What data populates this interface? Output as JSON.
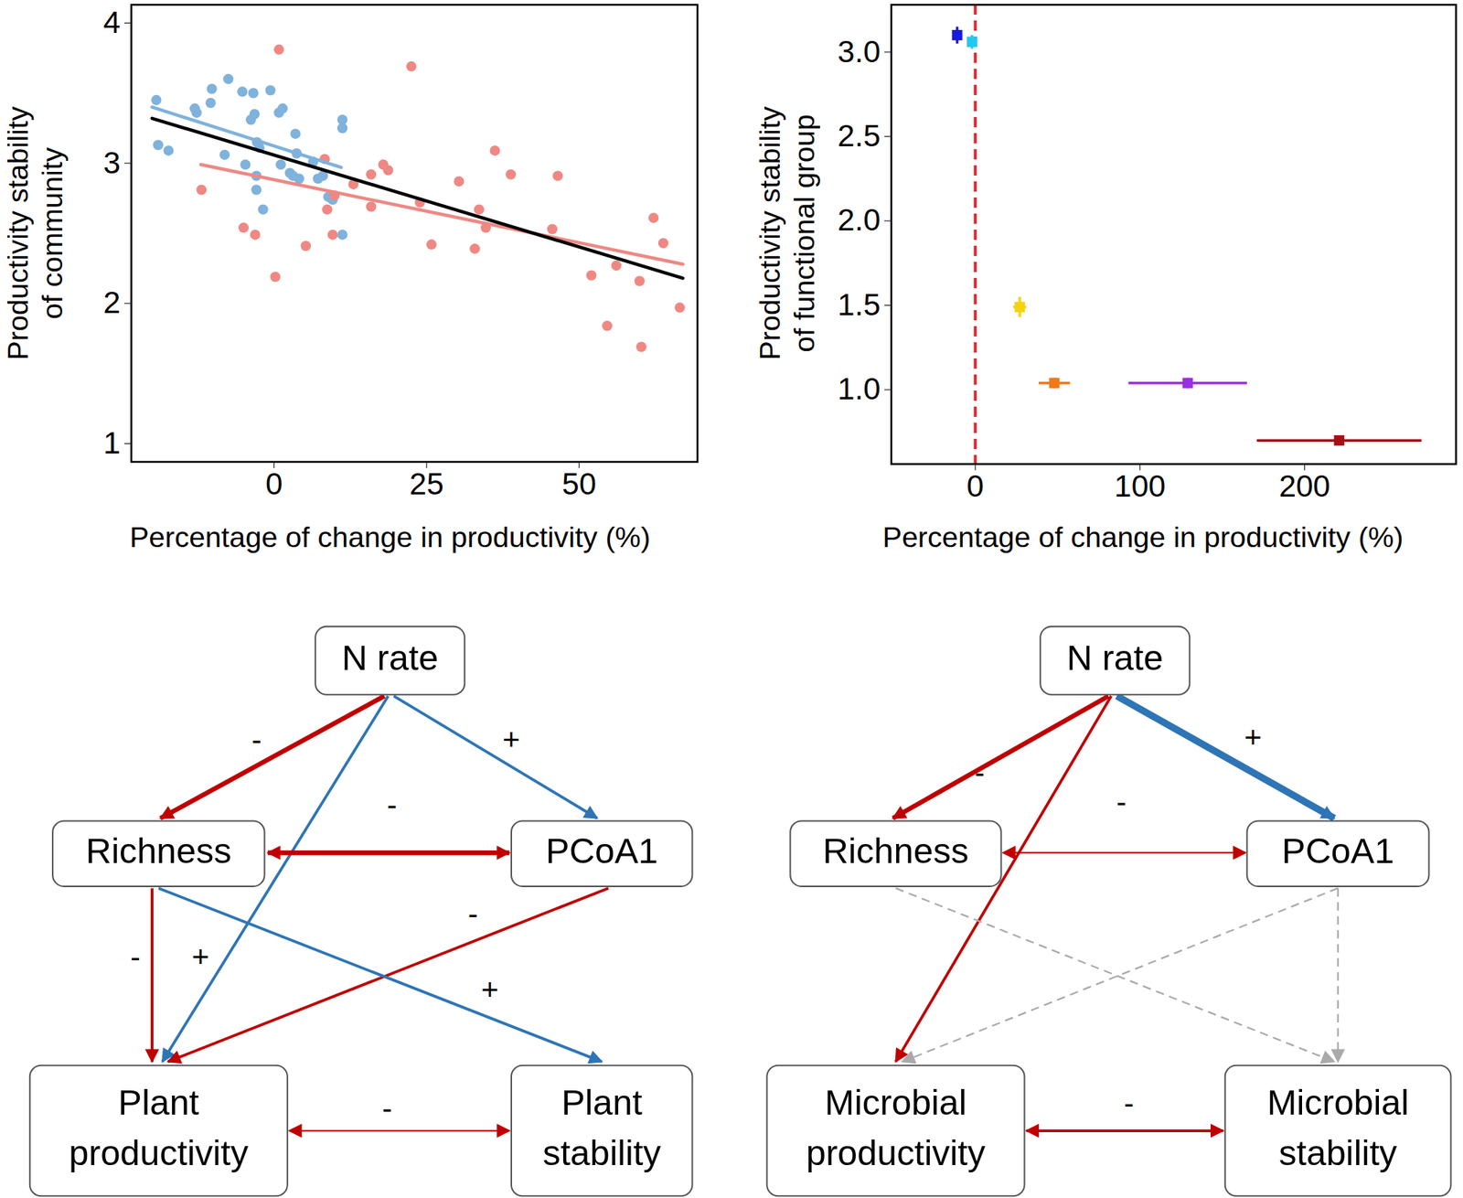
{
  "chart_data": [
    {
      "type": "scatter",
      "xlabel": "Percentage of change in productivity (%)",
      "ylabel": "Productivity stability\nof community",
      "xlim": [
        -23.4,
        69.4
      ],
      "ylim": [
        0.87,
        4.13
      ],
      "xticks": [
        0,
        25,
        50
      ],
      "yticks": [
        1,
        2,
        3,
        4
      ],
      "series": [
        {
          "type": "scatter",
          "color": "#7fb2dc",
          "x": [
            -19.3,
            -19.0,
            -17.3,
            -13.0,
            -12.7,
            -10.2,
            -7.5,
            -10.4,
            -8.1,
            -5.2,
            -3.4,
            -3.8,
            -3.2,
            -4.7,
            -2.8,
            -2.4,
            -2.9,
            -2.9,
            -1.8,
            -0.6,
            0.8,
            1.4,
            1.1,
            2.6,
            3.5,
            3.1,
            4.1,
            3.7,
            7.2,
            8.0,
            6.4,
            8.9,
            9.6,
            11.2,
            11.2,
            11.2
          ],
          "y": [
            3.45,
            3.13,
            3.09,
            3.39,
            3.36,
            3.53,
            3.6,
            3.43,
            3.06,
            3.51,
            3.5,
            3.31,
            3.35,
            2.99,
            3.15,
            3.11,
            2.91,
            2.81,
            2.67,
            3.52,
            3.36,
            3.39,
            2.99,
            2.93,
            3.21,
            2.91,
            2.89,
            3.07,
            2.89,
            2.91,
            3.01,
            2.76,
            2.74,
            3.31,
            3.25,
            2.49
          ]
        },
        {
          "type": "scatter",
          "color": "#ef8883",
          "x": [
            -11.9,
            -5.0,
            -3.1,
            0.2,
            0.8,
            5.2,
            8.3,
            8.7,
            9.6,
            9.9,
            13.0,
            15.9,
            15.9,
            17.9,
            18.7,
            22.5,
            23.9,
            25.8,
            30.3,
            32.9,
            33.6,
            34.7,
            36.2,
            38.8,
            45.6,
            46.5,
            52.0,
            54.6,
            56.1,
            59.9,
            60.2,
            62.2,
            63.8,
            66.5
          ],
          "y": [
            2.81,
            2.54,
            2.49,
            2.19,
            3.81,
            2.41,
            3.03,
            2.67,
            2.49,
            2.77,
            2.85,
            2.92,
            2.69,
            2.99,
            2.95,
            3.69,
            2.72,
            2.42,
            2.87,
            2.39,
            2.67,
            2.54,
            3.09,
            2.92,
            2.53,
            2.91,
            2.2,
            1.84,
            2.27,
            2.16,
            1.69,
            2.61,
            2.43,
            1.97
          ]
        },
        {
          "type": "line",
          "color": "#7fb2dc",
          "x": [
            -20,
            11
          ],
          "y": [
            3.4,
            2.97
          ]
        },
        {
          "type": "line",
          "color": "#ef8883",
          "x": [
            -12,
            67
          ],
          "y": [
            2.99,
            2.28
          ]
        },
        {
          "type": "line",
          "color": "#000000",
          "x": [
            -20,
            67
          ],
          "y": [
            3.32,
            2.18
          ]
        }
      ]
    },
    {
      "type": "scatter",
      "xlabel": "Percentage of change in productivity (%)",
      "ylabel": "Productivity stability\nof functional group",
      "xlim": [
        -51,
        292
      ],
      "ylim": [
        0.56,
        3.28
      ],
      "xticks": [
        0,
        100,
        200
      ],
      "yticks": [
        {
          "value": 1,
          "label": "1.0"
        },
        {
          "value": 1.5,
          "label": "1.5"
        },
        {
          "value": 2,
          "label": "2.0"
        },
        {
          "value": 2.5,
          "label": "2.5"
        },
        {
          "value": 3,
          "label": "3.0"
        }
      ],
      "marker": "square",
      "series": [
        {
          "type": "rule",
          "color": "#e8262b",
          "line_style": "dashed",
          "x": [
            0
          ]
        }
      ],
      "points": [
        {
          "x": -11,
          "y": 3.1,
          "x_error": 2,
          "y_error": 0.05,
          "color": "#1a1adf"
        },
        {
          "x": -2,
          "y": 3.06,
          "x_error": 1.5,
          "y_error": 0.04,
          "color": "#22c8f0"
        },
        {
          "x": 27,
          "y": 1.49,
          "x_error": 4,
          "y_error": 0.06,
          "color": "#f5d20f"
        },
        {
          "x": 48,
          "y": 1.04,
          "x_error": 9.5,
          "y_error": 0.03,
          "color": "#f07818"
        },
        {
          "x": 129,
          "y": 1.04,
          "x_error": 36,
          "y_error": 0.03,
          "color": "#9a30e0"
        },
        {
          "x": 221,
          "y": 0.7,
          "x_error": 50,
          "y_error": 0.01,
          "color": "#a50f15"
        }
      ]
    }
  ],
  "diagrams": [
    {
      "nodes": [
        {
          "label": "N rate"
        },
        {
          "label": "Richness"
        },
        {
          "label": "PCoA1"
        },
        {
          "label": "Plant\nproductivity"
        },
        {
          "label": "Plant\nstability"
        }
      ],
      "edges": [
        {
          "from": 0,
          "to": 1,
          "sign": "-",
          "color": "#c00000",
          "weight": "thick",
          "line_style": "solid"
        },
        {
          "from": 0,
          "to": 3,
          "sign": "+",
          "color": "#2e75b6",
          "weight": "normal",
          "line_style": "solid"
        },
        {
          "from": 0,
          "to": 2,
          "sign": "+",
          "color": "#2e75b6",
          "weight": "normal",
          "line_style": "solid"
        },
        {
          "from": 1,
          "to": 2,
          "sign": "-",
          "color": "#c00000",
          "weight": "thick",
          "line_style": "solid",
          "bidirectional": true
        },
        {
          "from": 1,
          "to": 3,
          "sign": "-",
          "color": "#c00000",
          "weight": "normal",
          "line_style": "solid"
        },
        {
          "from": 2,
          "to": 3,
          "sign": "-",
          "color": "#c00000",
          "weight": "normal",
          "line_style": "solid"
        },
        {
          "from": 1,
          "to": 4,
          "sign": "+",
          "color": "#2e75b6",
          "weight": "normal",
          "line_style": "solid"
        },
        {
          "from": 3,
          "to": 4,
          "sign": "-",
          "color": "#c00000",
          "weight": "thin",
          "line_style": "solid",
          "bidirectional": true
        }
      ]
    },
    {
      "nodes": [
        {
          "label": "N rate"
        },
        {
          "label": "Richness"
        },
        {
          "label": "PCoA1"
        },
        {
          "label": "Microbial\nproductivity"
        },
        {
          "label": "Microbial\nstability"
        }
      ],
      "edges": [
        {
          "from": 0,
          "to": 1,
          "sign": "-",
          "color": "#c00000",
          "weight": "thick",
          "line_style": "solid"
        },
        {
          "from": 0,
          "to": 2,
          "sign": "+",
          "color": "#2e75b6",
          "weight": "very thick",
          "line_style": "solid"
        },
        {
          "from": 1,
          "to": 2,
          "sign": "-",
          "color": "#c00000",
          "weight": "thin",
          "line_style": "solid",
          "bidirectional": true
        },
        {
          "from": 0,
          "to": 3,
          "sign": "-",
          "color": "#c00000",
          "weight": "normal",
          "line_style": "solid"
        },
        {
          "from": 1,
          "to": 4,
          "color": "#aaaaaa",
          "weight": "thin",
          "line_style": "dashed"
        },
        {
          "from": 2,
          "to": 3,
          "color": "#aaaaaa",
          "weight": "thin",
          "line_style": "dashed"
        },
        {
          "from": 2,
          "to": 4,
          "color": "#aaaaaa",
          "weight": "thin",
          "line_style": "dashed"
        },
        {
          "from": 3,
          "to": 4,
          "sign": "-",
          "color": "#c00000",
          "weight": "normal",
          "line_style": "solid",
          "bidirectional": true
        }
      ]
    }
  ]
}
